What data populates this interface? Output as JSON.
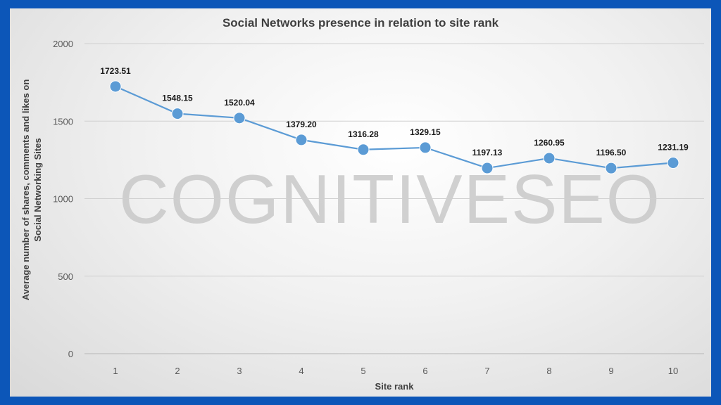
{
  "watermark": "COGNITIVESEO",
  "chart_data": {
    "type": "line",
    "title": "Social Networks presence in relation to site rank",
    "xlabel": "Site rank",
    "ylabel": "Average number of shares, comments and likes on Social Networking Sites",
    "ylabel_lines": [
      "Average number  of shares, comments and likes on",
      "Social Networking Sites"
    ],
    "x": [
      1,
      2,
      3,
      4,
      5,
      6,
      7,
      8,
      9,
      10
    ],
    "values": [
      1723.51,
      1548.15,
      1520.04,
      1379.2,
      1316.28,
      1329.15,
      1197.13,
      1260.95,
      1196.5,
      1231.19
    ],
    "data_labels": [
      "1723.51",
      "1548.15",
      "1520.04",
      "1379.20",
      "1316.28",
      "1329.15",
      "1197.13",
      "1260.95",
      "1196.50",
      "1231.19"
    ],
    "yticks": [
      0,
      500,
      1000,
      1500,
      2000
    ],
    "ylim": [
      0,
      2000
    ],
    "grid": true,
    "legend": "none",
    "colors": {
      "line": "#5b9bd5",
      "marker": "#5b9bd5",
      "grid": "#d0d0d0",
      "axis": "#bfbfbf"
    }
  }
}
